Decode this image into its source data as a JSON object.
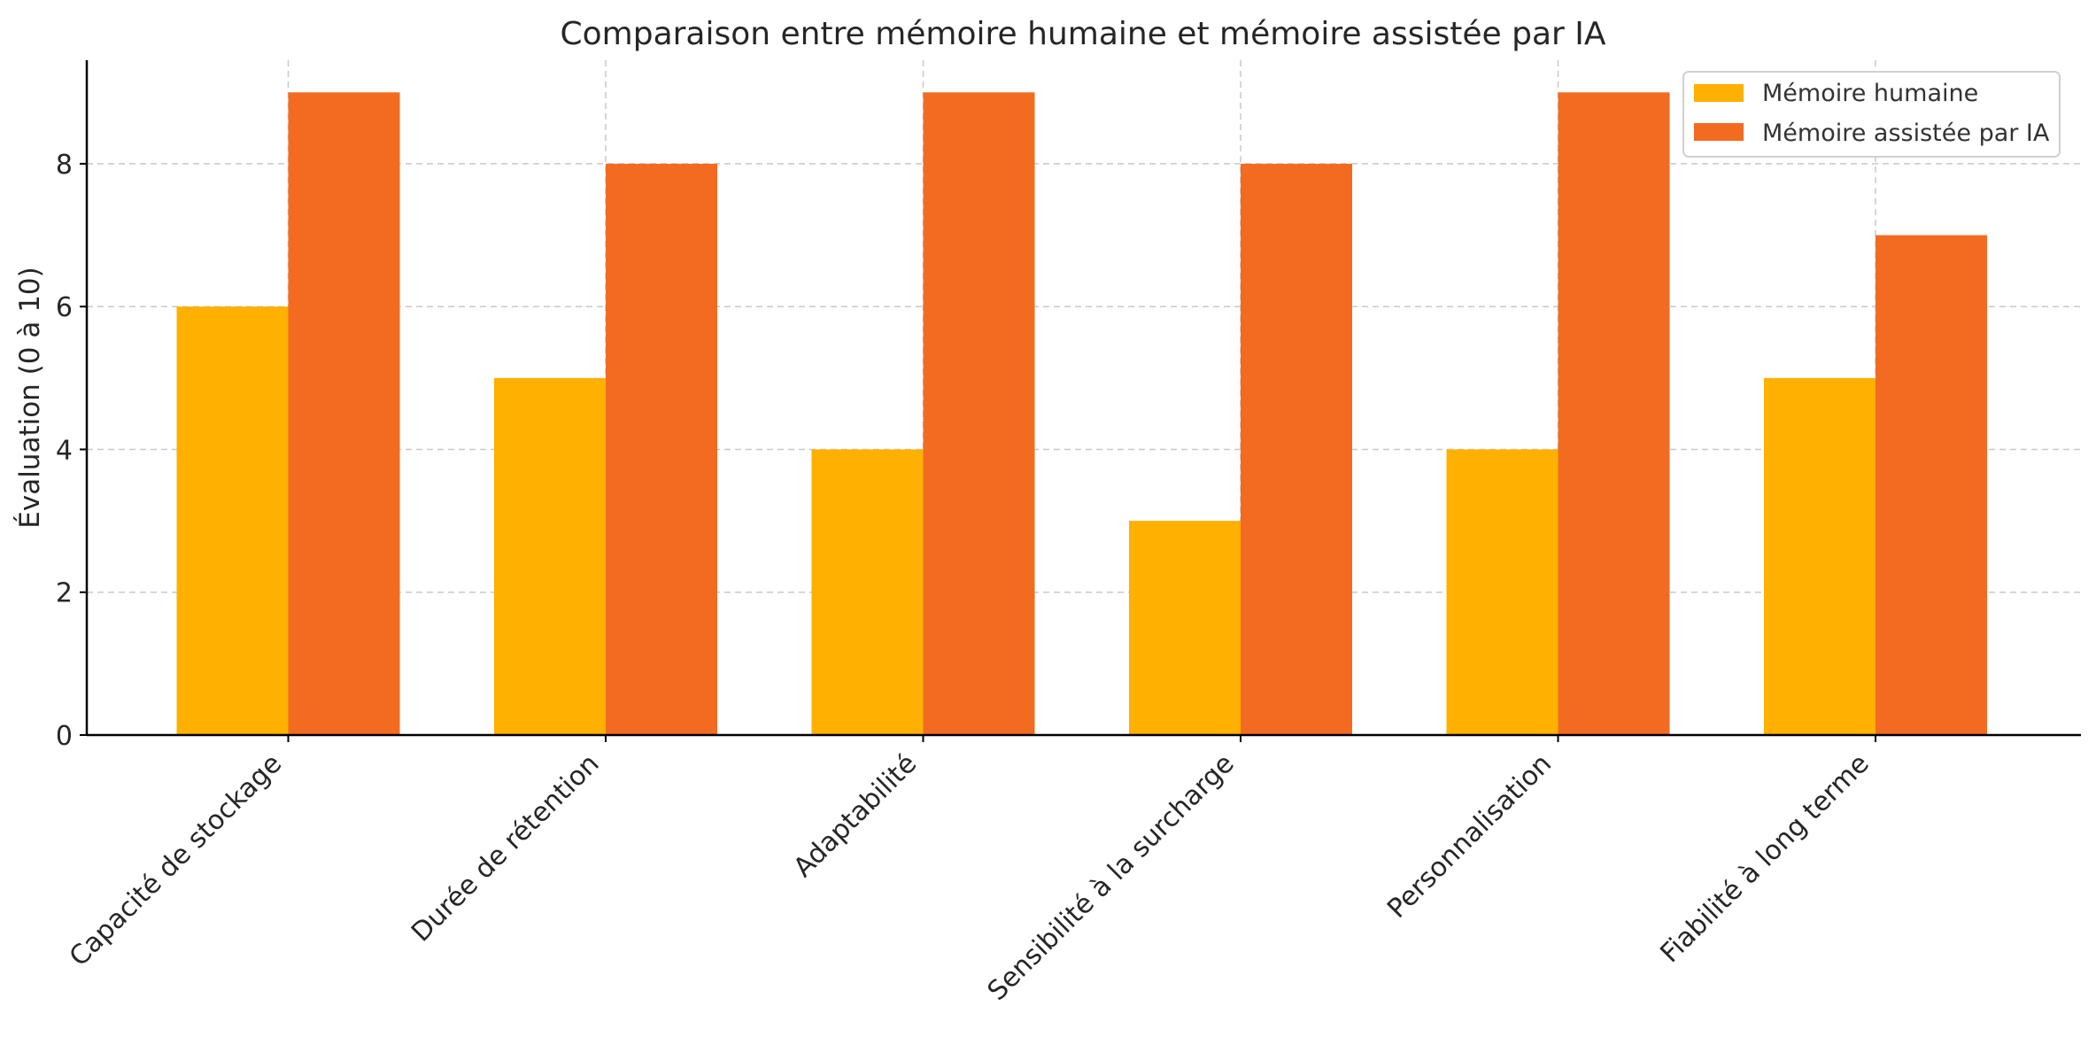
{
  "chart_data": {
    "type": "bar",
    "title": "Comparaison entre mémoire humaine et mémoire assistée par IA",
    "xlabel": "",
    "ylabel": "Évaluation (0 à 10)",
    "ylim": [
      0,
      9.45
    ],
    "yticks": [
      "0",
      "2",
      "4",
      "6",
      "8"
    ],
    "categories": [
      "Capacité de stockage",
      "Durée de rétention",
      "Adaptabilité",
      "Sensibilité à la surcharge",
      "Personnalisation",
      "Fiabilité à long terme"
    ],
    "series": [
      {
        "name": "Mémoire humaine",
        "color": "#FFB000",
        "values": [
          6,
          5,
          4,
          3,
          4,
          5
        ]
      },
      {
        "name": "Mémoire assistée par IA",
        "color": "#F26B21",
        "values": [
          9,
          8,
          9,
          8,
          9,
          7
        ]
      }
    ],
    "grid": true,
    "legend_position": "top-right"
  }
}
